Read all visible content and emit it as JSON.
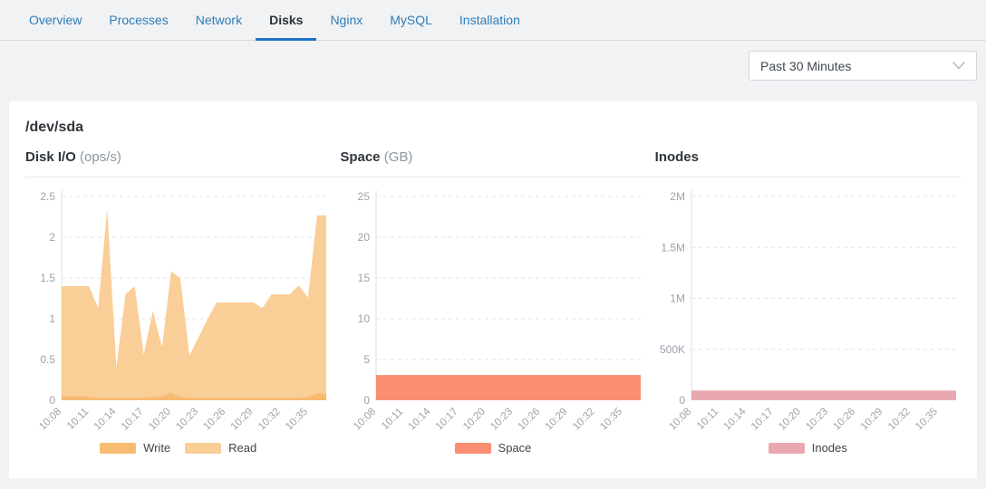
{
  "tabs": [
    {
      "label": "Overview",
      "active": false
    },
    {
      "label": "Processes",
      "active": false
    },
    {
      "label": "Network",
      "active": false
    },
    {
      "label": "Disks",
      "active": true
    },
    {
      "label": "Nginx",
      "active": false
    },
    {
      "label": "MySQL",
      "active": false
    },
    {
      "label": "Installation",
      "active": false
    }
  ],
  "toolbar": {
    "time_range": "Past 30 Minutes"
  },
  "panel": {
    "title": "/dev/sda"
  },
  "colors": {
    "accent_blue": "#1e73c8",
    "tab_link_blue": "#2e7cb8",
    "write_orange": "#F7BB71",
    "read_orange": "#FACE97",
    "space_salmon": "#F98E72",
    "inodes_pink": "#E9A8B0"
  },
  "chart_data": [
    {
      "id": "disk-io",
      "type": "area",
      "title": "Disk I/O",
      "title_unit": "(ops/s)",
      "x": [
        "10:08",
        "10:09",
        "10:10",
        "10:11",
        "10:12",
        "10:13",
        "10:14",
        "10:15",
        "10:16",
        "10:17",
        "10:18",
        "10:19",
        "10:20",
        "10:21",
        "10:22",
        "10:23",
        "10:24",
        "10:25",
        "10:26",
        "10:27",
        "10:28",
        "10:29",
        "10:30",
        "10:31",
        "10:32",
        "10:33",
        "10:34",
        "10:35",
        "10:36",
        "10:37"
      ],
      "x_label_step": 3,
      "x_tick_labels": [
        "10:08",
        "10:11",
        "10:14",
        "10:17",
        "10:20",
        "10:23",
        "10:26",
        "10:29",
        "10:32",
        "10:35"
      ],
      "ylim": [
        0,
        2.5
      ],
      "yticks": [
        {
          "value": 0,
          "label": "0"
        },
        {
          "value": 0.5,
          "label": "0.5"
        },
        {
          "value": 1,
          "label": "1"
        },
        {
          "value": 1.5,
          "label": "1.5"
        },
        {
          "value": 2,
          "label": "2"
        },
        {
          "value": 2.5,
          "label": "2.5"
        }
      ],
      "grid": "dashed",
      "legend_position": "bottom",
      "series": [
        {
          "name": "Read",
          "color": "#FACE97",
          "values": [
            1.4,
            1.4,
            1.4,
            1.4,
            1.13,
            2.35,
            0.4,
            1.3,
            1.4,
            0.56,
            1.1,
            0.65,
            1.58,
            1.5,
            0.55,
            0.77,
            1.0,
            1.2,
            1.2,
            1.2,
            1.2,
            1.2,
            1.13,
            1.3,
            1.3,
            1.3,
            1.41,
            1.26,
            2.27,
            2.27
          ]
        },
        {
          "name": "Write",
          "color": "#F7BB71",
          "values": [
            0.05,
            0.05,
            0.05,
            0.04,
            0.03,
            0.03,
            0.03,
            0.03,
            0.03,
            0.03,
            0.04,
            0.05,
            0.09,
            0.04,
            0.03,
            0.03,
            0.03,
            0.03,
            0.03,
            0.03,
            0.03,
            0.03,
            0.03,
            0.03,
            0.03,
            0.03,
            0.03,
            0.04,
            0.08,
            0.08
          ]
        }
      ],
      "legend": [
        {
          "label": "Write",
          "color": "#F7BB71"
        },
        {
          "label": "Read",
          "color": "#FACE97"
        }
      ]
    },
    {
      "id": "space",
      "type": "area",
      "title": "Space",
      "title_unit": "(GB)",
      "x": [
        "10:08",
        "10:09",
        "10:10",
        "10:11",
        "10:12",
        "10:13",
        "10:14",
        "10:15",
        "10:16",
        "10:17",
        "10:18",
        "10:19",
        "10:20",
        "10:21",
        "10:22",
        "10:23",
        "10:24",
        "10:25",
        "10:26",
        "10:27",
        "10:28",
        "10:29",
        "10:30",
        "10:31",
        "10:32",
        "10:33",
        "10:34",
        "10:35",
        "10:36",
        "10:37"
      ],
      "x_label_step": 3,
      "x_tick_labels": [
        "10:08",
        "10:11",
        "10:14",
        "10:17",
        "10:20",
        "10:23",
        "10:26",
        "10:29",
        "10:32",
        "10:35"
      ],
      "ylim": [
        0,
        25
      ],
      "yticks": [
        {
          "value": 0,
          "label": "0"
        },
        {
          "value": 5,
          "label": "5"
        },
        {
          "value": 10,
          "label": "10"
        },
        {
          "value": 15,
          "label": "15"
        },
        {
          "value": 20,
          "label": "20"
        },
        {
          "value": 25,
          "label": "25"
        }
      ],
      "grid": "dashed",
      "legend_position": "bottom",
      "series": [
        {
          "name": "Space",
          "color": "#F98E72",
          "values": 3.1
        }
      ],
      "legend": [
        {
          "label": "Space",
          "color": "#F98E72"
        }
      ]
    },
    {
      "id": "inodes",
      "type": "area",
      "title": "Inodes",
      "title_unit": "",
      "x": [
        "10:08",
        "10:09",
        "10:10",
        "10:11",
        "10:12",
        "10:13",
        "10:14",
        "10:15",
        "10:16",
        "10:17",
        "10:18",
        "10:19",
        "10:20",
        "10:21",
        "10:22",
        "10:23",
        "10:24",
        "10:25",
        "10:26",
        "10:27",
        "10:28",
        "10:29",
        "10:30",
        "10:31",
        "10:32",
        "10:33",
        "10:34",
        "10:35",
        "10:36",
        "10:37"
      ],
      "x_label_step": 3,
      "x_tick_labels": [
        "10:08",
        "10:11",
        "10:14",
        "10:17",
        "10:20",
        "10:23",
        "10:26",
        "10:29",
        "10:32",
        "10:35"
      ],
      "ylim": [
        0,
        2000000
      ],
      "yticks": [
        {
          "value": 0,
          "label": "0"
        },
        {
          "value": 500000,
          "label": "500K"
        },
        {
          "value": 1000000,
          "label": "1M"
        },
        {
          "value": 1500000,
          "label": "1.5M"
        },
        {
          "value": 2000000,
          "label": "2M"
        }
      ],
      "grid": "dashed",
      "legend_position": "bottom",
      "series": [
        {
          "name": "Inodes",
          "color": "#E9A8B0",
          "values": 95000
        }
      ],
      "legend": [
        {
          "label": "Inodes",
          "color": "#E9A8B0"
        }
      ]
    }
  ]
}
